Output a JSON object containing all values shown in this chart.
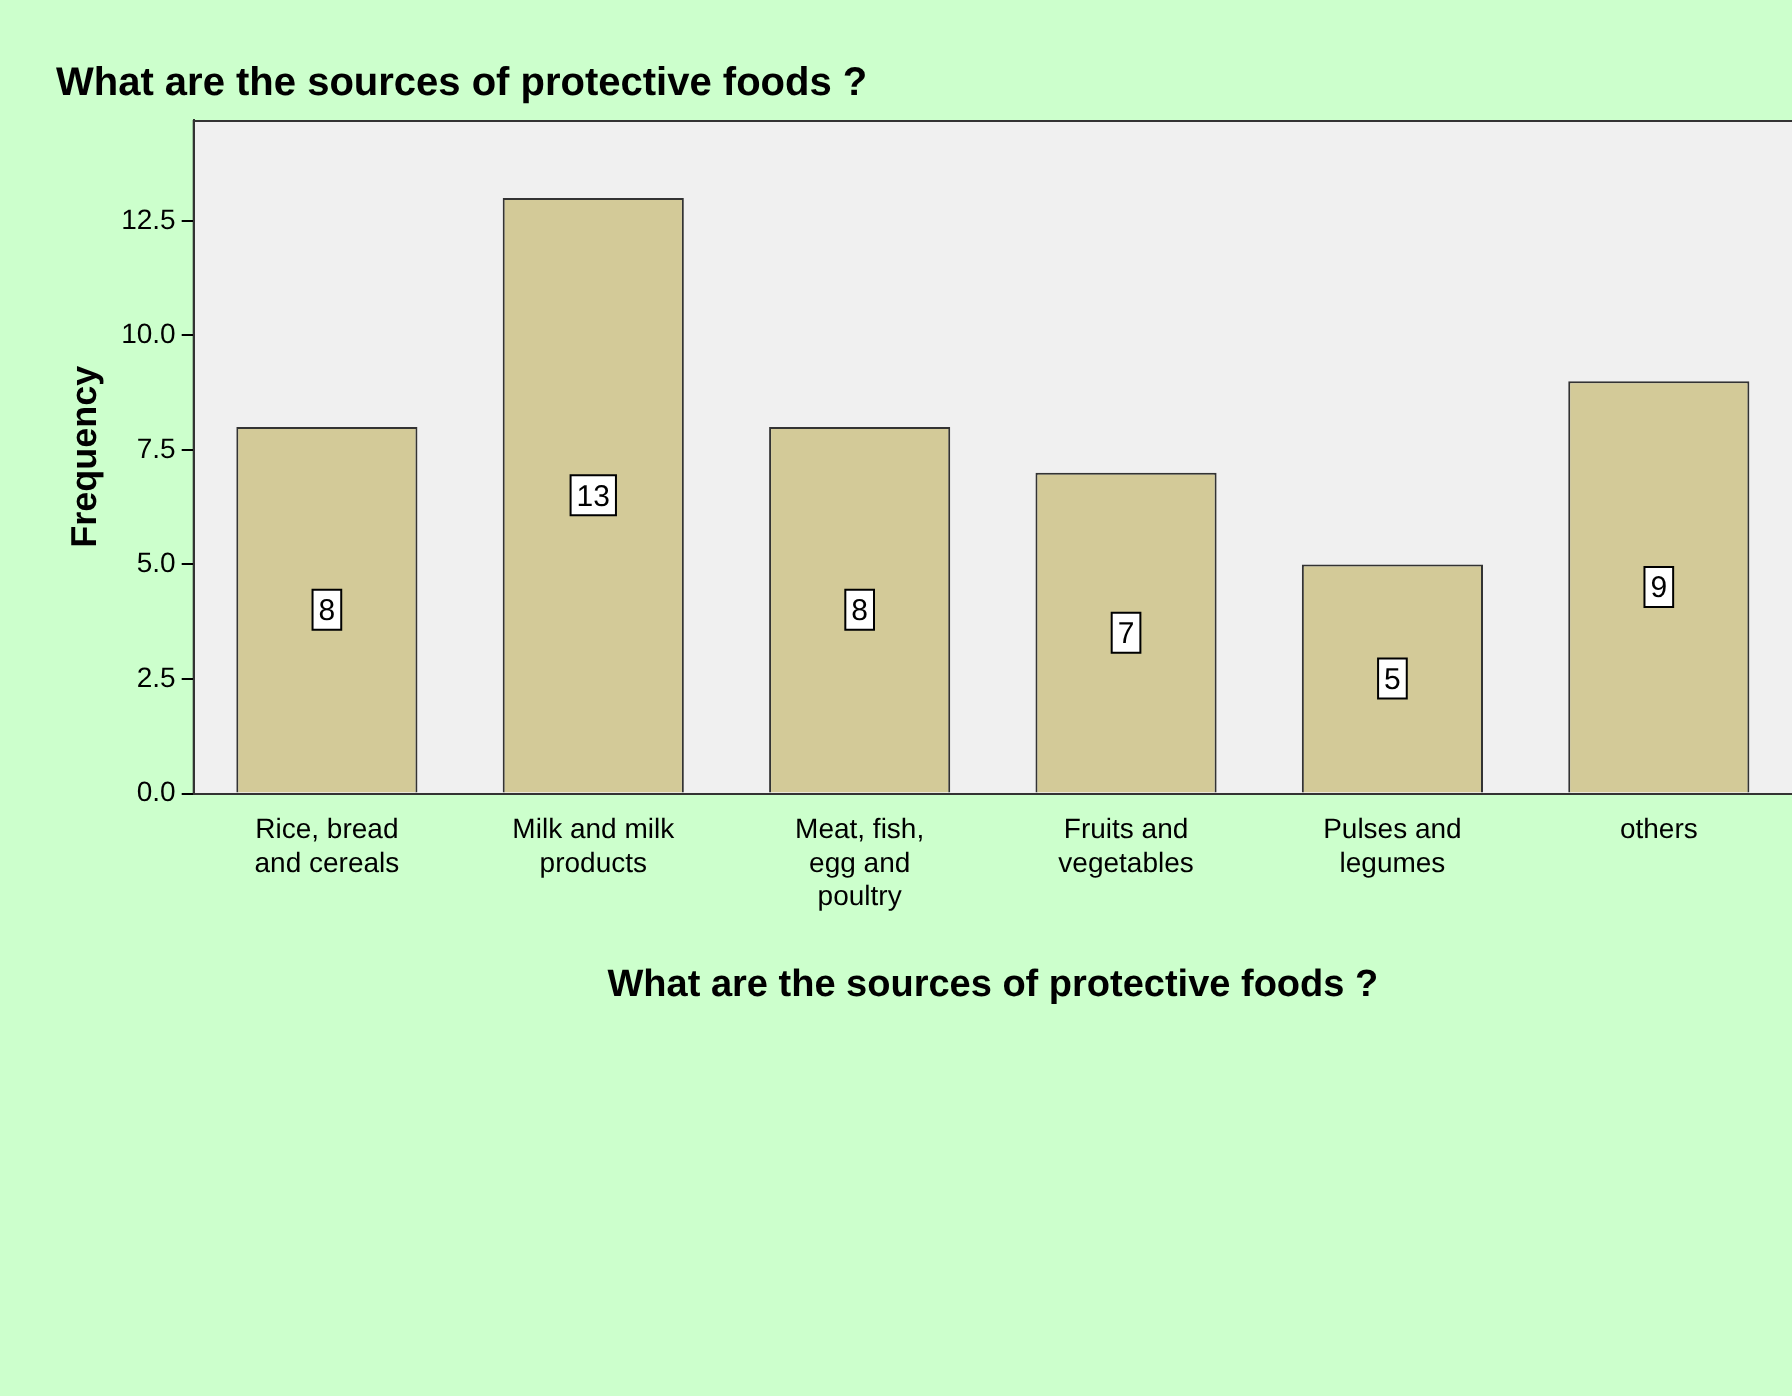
{
  "chart_data": {
    "type": "bar",
    "title": "What are the sources of protective foods ?",
    "xlabel": "What are the sources of protective foods ?",
    "ylabel": "Frequency",
    "categories": [
      "Rice, bread and cereals",
      "Milk and milk products",
      "Meat, fish, egg and poultry",
      "Fruits and vegetables",
      "Pulses and legumes",
      "others"
    ],
    "values": [
      8,
      13,
      8,
      7,
      5,
      9
    ],
    "color": "#d3ca98",
    "ylim": [
      0,
      14.7
    ],
    "yticks": [
      {
        "value": 0,
        "label": "0.0"
      },
      {
        "value": 2.5,
        "label": "2.5"
      },
      {
        "value": 5,
        "label": "5.0"
      },
      {
        "value": 7.5,
        "label": "7.5"
      },
      {
        "value": 10,
        "label": "10.0"
      },
      {
        "value": 12.5,
        "label": "12.5"
      }
    ],
    "data_labels": true,
    "legend": false
  }
}
